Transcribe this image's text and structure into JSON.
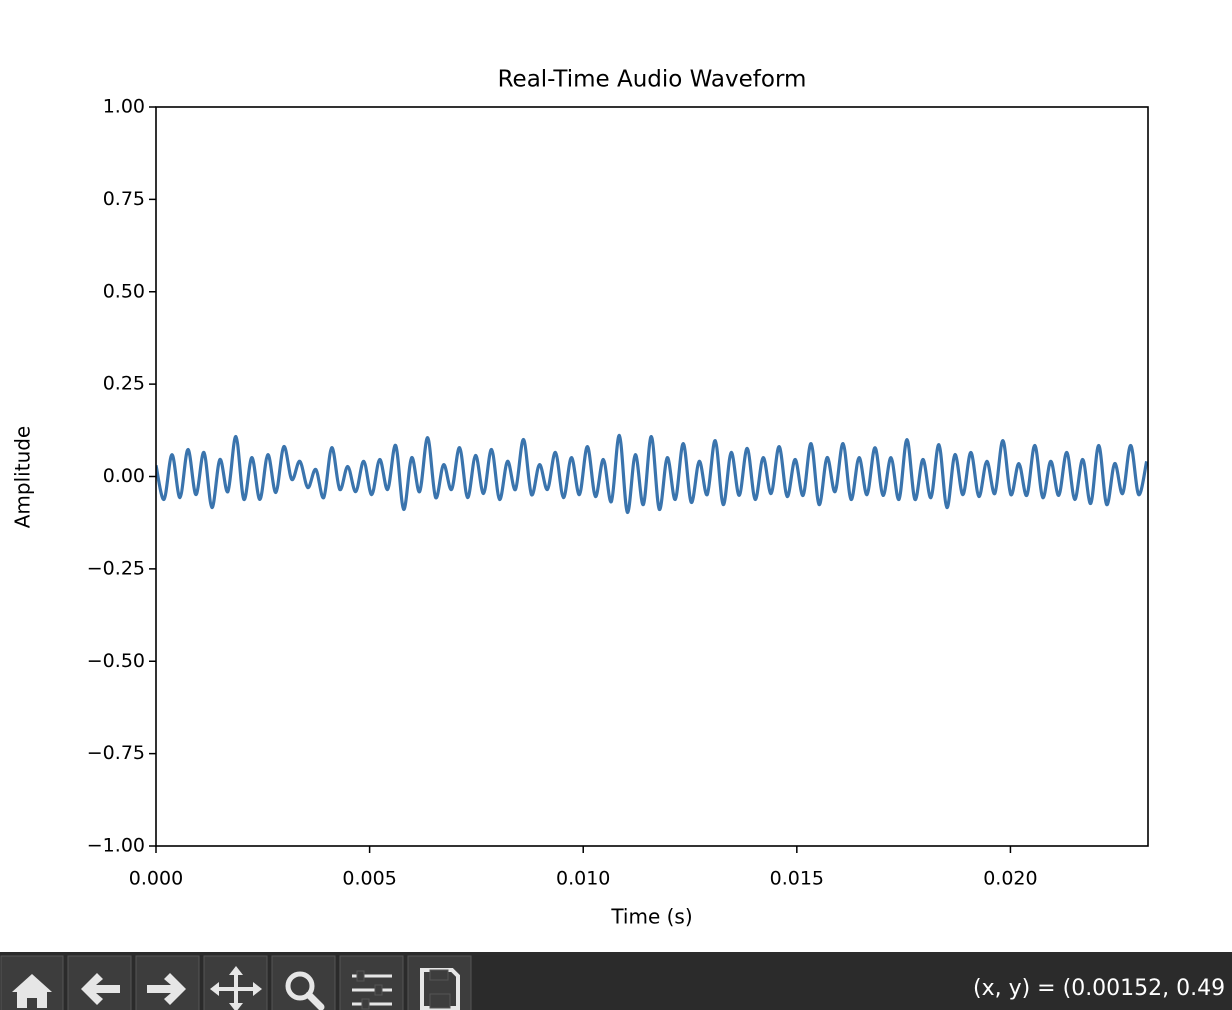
{
  "chart_data": {
    "type": "line",
    "title": "Real-Time Audio Waveform",
    "x_label": "Time (s)",
    "y_label": "Amplitude",
    "xlim": [
      0,
      0.02322
    ],
    "ylim": [
      -1,
      1
    ],
    "xticks": [
      {
        "value": 0,
        "label": "0.000"
      },
      0.005,
      {
        "value": 0.01,
        "label": "0.010"
      },
      0.015,
      {
        "value": 0.02,
        "label": "0.020"
      }
    ],
    "yticks": [
      {
        "value": -1,
        "label": "−1.00"
      },
      {
        "value": -0.75,
        "label": "−0.75"
      },
      {
        "value": -0.5,
        "label": "−0.50"
      },
      {
        "value": -0.25,
        "label": "−0.25"
      },
      {
        "value": 0,
        "label": "0.00"
      },
      0.25,
      {
        "value": 0.5,
        "label": "0.50"
      },
      0.75,
      {
        "value": 1,
        "label": "1.00"
      }
    ],
    "grid": false,
    "x": [
      0,
      0.000187,
      0.000374,
      0.000561,
      0.000748,
      0.000935,
      0.001122,
      0.001309,
      0.001496,
      0.001683,
      0.00187,
      0.002057,
      0.002244,
      0.002431,
      0.002618,
      0.002805,
      0.002992,
      0.003179,
      0.003366,
      0.003553,
      0.00374,
      0.003927,
      0.004114,
      0.004301,
      0.004488,
      0.004675,
      0.004862,
      0.005049,
      0.005236,
      0.005423,
      0.00561,
      0.005797,
      0.005984,
      0.006171,
      0.006358,
      0.006545,
      0.006732,
      0.006919,
      0.007106,
      0.007293,
      0.00748,
      0.007667,
      0.007854,
      0.008041,
      0.008228,
      0.008415,
      0.008602,
      0.008789,
      0.008976,
      0.009163,
      0.00935,
      0.009537,
      0.009724,
      0.009911,
      0.010098,
      0.010285,
      0.010472,
      0.010659,
      0.010846,
      0.011033,
      0.01122,
      0.011407,
      0.011594,
      0.011781,
      0.011968,
      0.012155,
      0.012342,
      0.012529,
      0.012716,
      0.012903,
      0.01309,
      0.013277,
      0.013464,
      0.013651,
      0.013838,
      0.014025,
      0.014212,
      0.014399,
      0.014586,
      0.014773,
      0.01496,
      0.015147,
      0.015334,
      0.015521,
      0.015708,
      0.015895,
      0.016082,
      0.016269,
      0.016456,
      0.016643,
      0.01683,
      0.017017,
      0.017204,
      0.017391,
      0.017578,
      0.017765,
      0.017952,
      0.018139,
      0.018326,
      0.018513,
      0.0187,
      0.018887,
      0.019074,
      0.019261,
      0.019448,
      0.019635,
      0.019822,
      0.020009,
      0.020196,
      0.020383,
      0.02057,
      0.020757,
      0.020944,
      0.021131,
      0.021318,
      0.021505,
      0.021692,
      0.021879,
      0.022066,
      0.022253,
      0.02244,
      0.022627,
      0.022814,
      0.023001,
      0.023188
    ],
    "series": [
      {
        "color": "#3a74ad",
        "values": [
          0.03,
          -0.062,
          0.059,
          -0.057,
          0.073,
          -0.049,
          0.065,
          -0.084,
          0.046,
          -0.041,
          0.108,
          -0.062,
          0.051,
          -0.062,
          0.059,
          -0.043,
          0.081,
          -0.008,
          0.041,
          -0.03,
          0.019,
          -0.057,
          0.078,
          -0.035,
          0.027,
          -0.041,
          0.041,
          -0.049,
          0.046,
          -0.035,
          0.084,
          -0.089,
          0.051,
          -0.041,
          0.105,
          -0.057,
          0.032,
          -0.035,
          0.078,
          -0.057,
          0.057,
          -0.046,
          0.073,
          -0.062,
          0.041,
          -0.035,
          0.1,
          -0.049,
          0.032,
          -0.035,
          0.065,
          -0.057,
          0.051,
          -0.049,
          0.081,
          -0.054,
          0.046,
          -0.068,
          0.111,
          -0.097,
          0.059,
          -0.076,
          0.108,
          -0.089,
          0.051,
          -0.062,
          0.089,
          -0.07,
          0.041,
          -0.049,
          0.097,
          -0.076,
          0.065,
          -0.051,
          0.076,
          -0.062,
          0.051,
          -0.046,
          0.081,
          -0.054,
          0.046,
          -0.051,
          0.089,
          -0.076,
          0.051,
          -0.041,
          0.089,
          -0.062,
          0.051,
          -0.049,
          0.078,
          -0.051,
          0.051,
          -0.062,
          0.1,
          -0.062,
          0.046,
          -0.057,
          0.086,
          -0.084,
          0.059,
          -0.049,
          0.065,
          -0.054,
          0.041,
          -0.046,
          0.097,
          -0.049,
          0.035,
          -0.051,
          0.084,
          -0.057,
          0.041,
          -0.051,
          0.065,
          -0.062,
          0.046,
          -0.073,
          0.084,
          -0.076,
          0.035,
          -0.046,
          0.084,
          -0.049,
          0.041
        ]
      }
    ]
  },
  "toolbar": {
    "status": "(x, y) = (0.00152, 0.49"
  }
}
